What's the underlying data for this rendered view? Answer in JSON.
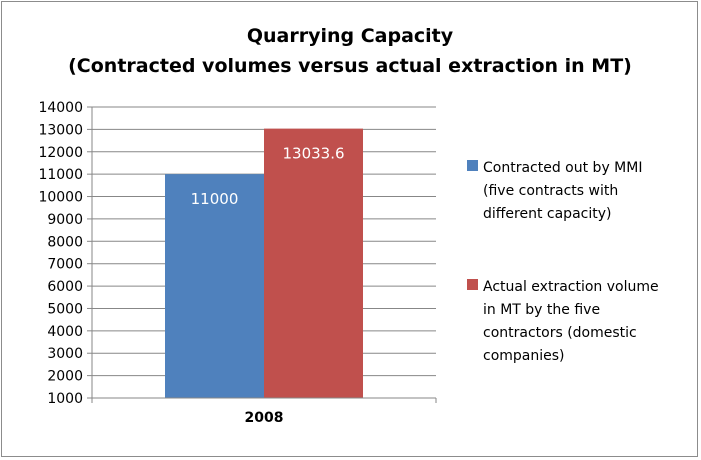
{
  "chart_data": {
    "type": "bar",
    "title_lines": [
      "Quarrying Capacity",
      "(Contracted volumes versus actual extraction  in MT)"
    ],
    "categories": [
      "2008"
    ],
    "series": [
      {
        "name": "Contracted out by MMI (five contracts with different capacity)",
        "legend_lines": [
          "Contracted out by MMI",
          "(five contracts with",
          "different capacity)"
        ],
        "values": [
          11000
        ],
        "data_labels": [
          "11000"
        ],
        "color": "#4f81bd"
      },
      {
        "name": "Actual extraction volume in MT by the five contractors (domestic companies)",
        "legend_lines": [
          "Actual extraction volume",
          "in MT by the five",
          "contractors (domestic",
          "companies)"
        ],
        "values": [
          13033.6
        ],
        "data_labels": [
          "13033.6"
        ],
        "color": "#c0504d"
      }
    ],
    "ylim": [
      1000,
      14000
    ],
    "yticks": [
      "1000",
      "2000",
      "3000",
      "4000",
      "5000",
      "6000",
      "7000",
      "8000",
      "9000",
      "10000",
      "11000",
      "12000",
      "13000",
      "14000"
    ],
    "grid": true,
    "legend_position": "right"
  }
}
